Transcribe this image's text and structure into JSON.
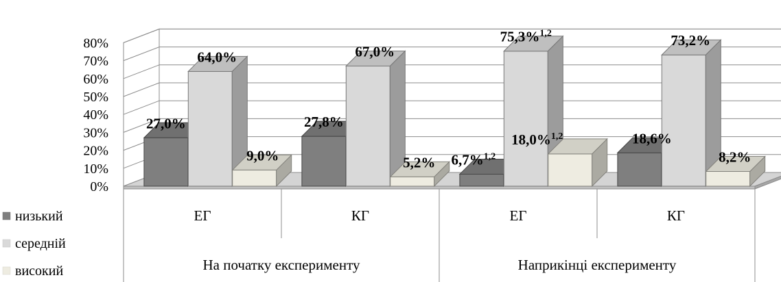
{
  "chart_data": {
    "type": "bar",
    "title": "",
    "xlabel": "",
    "ylabel": "",
    "ylim": [
      0,
      80
    ],
    "yticks": [
      "0%",
      "10%",
      "20%",
      "30%",
      "40%",
      "50%",
      "60%",
      "70%",
      "80%"
    ],
    "grid": true,
    "legend_position": "bottom-left",
    "groups": [
      {
        "label": "На початку експерименту",
        "categories": [
          "ЕГ",
          "КГ"
        ]
      },
      {
        "label": "Наприкінці експерименту",
        "categories": [
          "ЕГ",
          "КГ"
        ]
      }
    ],
    "categories": [
      "ЕГ",
      "КГ",
      "ЕГ",
      "КГ"
    ],
    "series": [
      {
        "name": "низький",
        "color": "#7f7f7f",
        "values": [
          27.0,
          27.8,
          6.7,
          18.6
        ],
        "labels": [
          "27,0%",
          "27,8%",
          "6,7%",
          "18,6%"
        ],
        "label_sup": [
          "",
          "",
          "1,2",
          ""
        ]
      },
      {
        "name": "середній",
        "color": "#d9d9d9",
        "values": [
          64.0,
          67.0,
          75.3,
          73.2
        ],
        "labels": [
          "64,0%",
          "67,0%",
          "75,3%",
          "73,2%"
        ],
        "label_sup": [
          "",
          "",
          "1,2",
          ""
        ]
      },
      {
        "name": "високий",
        "color": "#eeece1",
        "values": [
          9.0,
          5.2,
          18.0,
          8.2
        ],
        "labels": [
          "9,0%",
          "5,2%",
          "18,0%",
          "8,2%"
        ],
        "label_sup": [
          "",
          "",
          "1,2",
          ""
        ]
      }
    ]
  }
}
